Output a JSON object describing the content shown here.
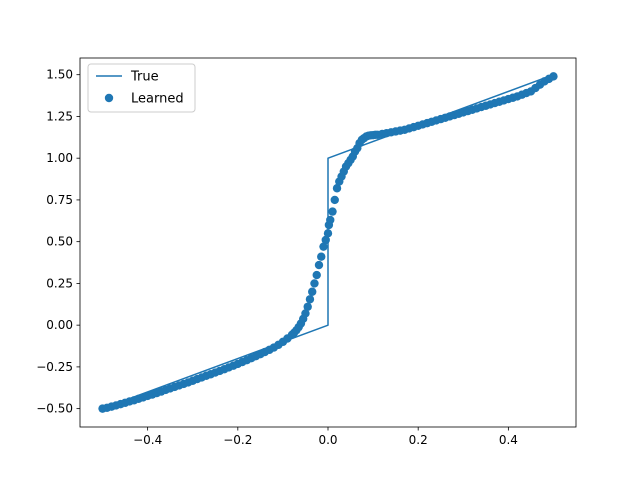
{
  "chart_data": {
    "type": "line",
    "xlim": [
      -0.55,
      0.55
    ],
    "ylim": [
      -0.61,
      1.6
    ],
    "x_ticks": [
      -0.4,
      -0.2,
      0.0,
      0.2,
      0.4
    ],
    "x_tick_labels": [
      "−0.4",
      "−0.2",
      "0.0",
      "0.2",
      "0.4"
    ],
    "y_ticks": [
      -0.5,
      -0.25,
      0.0,
      0.25,
      0.5,
      0.75,
      1.0,
      1.25,
      1.5
    ],
    "y_tick_labels": [
      "−0.50",
      "−0.25",
      "0.00",
      "0.25",
      "0.50",
      "0.75",
      "1.00",
      "1.25",
      "1.50"
    ],
    "grid": false,
    "legend_position": "top-left",
    "color": "#1f77b4",
    "series": [
      {
        "name": "True",
        "kind": "line",
        "x": [
          -0.5,
          0.0,
          0.0,
          0.5
        ],
        "y": [
          -0.5,
          0.0,
          1.0,
          1.5
        ]
      },
      {
        "name": "Learned",
        "kind": "scatter",
        "points": [
          [
            -0.5,
            -0.5
          ],
          [
            -0.49,
            -0.495
          ],
          [
            -0.48,
            -0.488
          ],
          [
            -0.47,
            -0.481
          ],
          [
            -0.46,
            -0.473
          ],
          [
            -0.45,
            -0.465
          ],
          [
            -0.44,
            -0.457
          ],
          [
            -0.43,
            -0.45
          ],
          [
            -0.42,
            -0.441
          ],
          [
            -0.41,
            -0.433
          ],
          [
            -0.4,
            -0.424
          ],
          [
            -0.39,
            -0.416
          ],
          [
            -0.38,
            -0.407
          ],
          [
            -0.37,
            -0.398
          ],
          [
            -0.36,
            -0.388
          ],
          [
            -0.35,
            -0.379
          ],
          [
            -0.34,
            -0.37
          ],
          [
            -0.33,
            -0.361
          ],
          [
            -0.32,
            -0.352
          ],
          [
            -0.31,
            -0.343
          ],
          [
            -0.3,
            -0.333
          ],
          [
            -0.29,
            -0.323
          ],
          [
            -0.28,
            -0.313
          ],
          [
            -0.27,
            -0.303
          ],
          [
            -0.26,
            -0.294
          ],
          [
            -0.25,
            -0.284
          ],
          [
            -0.24,
            -0.274
          ],
          [
            -0.23,
            -0.264
          ],
          [
            -0.22,
            -0.253
          ],
          [
            -0.21,
            -0.243
          ],
          [
            -0.2,
            -0.232
          ],
          [
            -0.19,
            -0.221
          ],
          [
            -0.18,
            -0.21
          ],
          [
            -0.17,
            -0.198
          ],
          [
            -0.16,
            -0.186
          ],
          [
            -0.15,
            -0.174
          ],
          [
            -0.14,
            -0.161
          ],
          [
            -0.13,
            -0.148
          ],
          [
            -0.12,
            -0.134
          ],
          [
            -0.11,
            -0.118
          ],
          [
            -0.1,
            -0.1
          ],
          [
            -0.09,
            -0.08
          ],
          [
            -0.08,
            -0.058
          ],
          [
            -0.075,
            -0.045
          ],
          [
            -0.07,
            -0.03
          ],
          [
            -0.065,
            -0.012
          ],
          [
            -0.06,
            0.01
          ],
          [
            -0.055,
            0.038
          ],
          [
            -0.05,
            0.07
          ],
          [
            -0.045,
            0.11
          ],
          [
            -0.04,
            0.155
          ],
          [
            -0.035,
            0.2
          ],
          [
            -0.03,
            0.25
          ],
          [
            -0.025,
            0.3
          ],
          [
            -0.02,
            0.36
          ],
          [
            -0.015,
            0.41
          ],
          [
            -0.01,
            0.47
          ],
          [
            -0.005,
            0.51
          ],
          [
            0.0,
            0.55
          ],
          [
            0.002,
            0.6
          ],
          [
            0.005,
            0.63
          ],
          [
            0.01,
            0.68
          ],
          [
            0.015,
            0.75
          ],
          [
            0.02,
            0.82
          ],
          [
            0.025,
            0.86
          ],
          [
            0.03,
            0.89
          ],
          [
            0.035,
            0.92
          ],
          [
            0.04,
            0.95
          ],
          [
            0.045,
            0.97
          ],
          [
            0.05,
            0.99
          ],
          [
            0.055,
            1.01
          ],
          [
            0.06,
            1.04
          ],
          [
            0.065,
            1.06
          ],
          [
            0.07,
            1.09
          ],
          [
            0.075,
            1.11
          ],
          [
            0.08,
            1.12
          ],
          [
            0.085,
            1.13
          ],
          [
            0.09,
            1.135
          ],
          [
            0.095,
            1.137
          ],
          [
            0.1,
            1.138
          ],
          [
            0.105,
            1.14
          ],
          [
            0.11,
            1.14
          ],
          [
            0.12,
            1.145
          ],
          [
            0.13,
            1.15
          ],
          [
            0.14,
            1.155
          ],
          [
            0.15,
            1.16
          ],
          [
            0.16,
            1.165
          ],
          [
            0.17,
            1.17
          ],
          [
            0.18,
            1.178
          ],
          [
            0.19,
            1.186
          ],
          [
            0.2,
            1.194
          ],
          [
            0.21,
            1.202
          ],
          [
            0.22,
            1.21
          ],
          [
            0.23,
            1.218
          ],
          [
            0.24,
            1.226
          ],
          [
            0.25,
            1.234
          ],
          [
            0.26,
            1.242
          ],
          [
            0.27,
            1.25
          ],
          [
            0.28,
            1.258
          ],
          [
            0.29,
            1.266
          ],
          [
            0.3,
            1.274
          ],
          [
            0.31,
            1.282
          ],
          [
            0.32,
            1.29
          ],
          [
            0.33,
            1.298
          ],
          [
            0.34,
            1.306
          ],
          [
            0.35,
            1.314
          ],
          [
            0.36,
            1.322
          ],
          [
            0.37,
            1.33
          ],
          [
            0.38,
            1.338
          ],
          [
            0.39,
            1.346
          ],
          [
            0.4,
            1.354
          ],
          [
            0.41,
            1.362
          ],
          [
            0.42,
            1.37
          ],
          [
            0.43,
            1.38
          ],
          [
            0.44,
            1.39
          ],
          [
            0.45,
            1.4
          ],
          [
            0.46,
            1.42
          ],
          [
            0.47,
            1.44
          ],
          [
            0.48,
            1.46
          ],
          [
            0.49,
            1.475
          ],
          [
            0.5,
            1.49
          ]
        ]
      }
    ]
  }
}
